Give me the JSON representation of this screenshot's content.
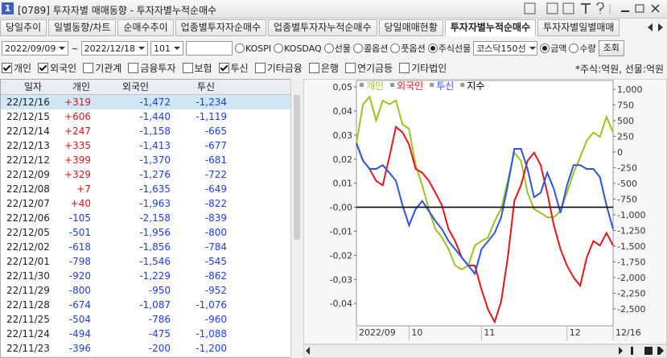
{
  "window": {
    "badge": "1",
    "title": "[0789] 투자자별 매매동향 - 투자자별누적순매수"
  },
  "tabs": [
    {
      "label": "당일추이",
      "active": false
    },
    {
      "label": "일별동향/차트",
      "active": false
    },
    {
      "label": "순매수추이",
      "active": false
    },
    {
      "label": "업종별투자자순매수",
      "active": false
    },
    {
      "label": "업종별투자자누적순매수",
      "active": false
    },
    {
      "label": "당일매매현황",
      "active": false
    },
    {
      "label": "투자자별누적순매수",
      "active": true
    },
    {
      "label": "투자자별일별매매",
      "active": false
    }
  ],
  "controls": {
    "start_date": "2022/09/09",
    "separator": "~",
    "end_date": "2022/12/18",
    "code": "101",
    "markets": [
      {
        "label": "KOSPI",
        "checked": false
      },
      {
        "label": "KOSDAQ",
        "checked": false
      },
      {
        "label": "선물",
        "checked": false
      },
      {
        "label": "콜옵션",
        "checked": false
      },
      {
        "label": "풋옵션",
        "checked": false
      },
      {
        "label": "주식선물",
        "checked": true
      }
    ],
    "product": "코스닥150선",
    "units": [
      {
        "label": "금액",
        "checked": true
      },
      {
        "label": "수량",
        "checked": false
      }
    ],
    "search": "조회"
  },
  "filters": {
    "checkboxes": [
      {
        "label": "개인",
        "checked": true
      },
      {
        "label": "외국인",
        "checked": true
      },
      {
        "label": "기관계",
        "checked": false
      },
      {
        "label": "금융투자",
        "checked": false
      },
      {
        "label": "보험",
        "checked": false
      },
      {
        "label": "투신",
        "checked": true
      },
      {
        "label": "기타금융",
        "checked": false
      },
      {
        "label": "은행",
        "checked": false
      },
      {
        "label": "연기금등",
        "checked": false
      },
      {
        "label": "기타법인",
        "checked": false
      }
    ],
    "unit_note": "*주식:억원, 선물:억원"
  },
  "table": {
    "columns": [
      "일자",
      "개인",
      "외국인",
      "투신"
    ],
    "rows": [
      [
        "22/12/16",
        "+319",
        "-1,472",
        "-1,234"
      ],
      [
        "22/12/15",
        "+606",
        "-1,440",
        "-1,119"
      ],
      [
        "22/12/14",
        "+247",
        "-1,158",
        "-665"
      ],
      [
        "22/12/13",
        "+335",
        "-1,413",
        "-677"
      ],
      [
        "22/12/12",
        "+399",
        "-1,370",
        "-681"
      ],
      [
        "22/12/09",
        "+329",
        "-1,276",
        "-722"
      ],
      [
        "22/12/08",
        "+7",
        "-1,635",
        "-649"
      ],
      [
        "22/12/07",
        "+40",
        "-1,963",
        "-822"
      ],
      [
        "22/12/06",
        "-105",
        "-2,158",
        "-839"
      ],
      [
        "22/12/05",
        "-501",
        "-1,956",
        "-800"
      ],
      [
        "22/12/02",
        "-618",
        "-1,856",
        "-784"
      ],
      [
        "22/12/01",
        "-798",
        "-1,546",
        "-545"
      ],
      [
        "22/11/30",
        "-920",
        "-1,229",
        "-862"
      ],
      [
        "22/11/29",
        "-800",
        "-950",
        "-952"
      ],
      [
        "22/11/28",
        "-674",
        "-1,087",
        "-1,076"
      ],
      [
        "22/11/25",
        "-504",
        "-786",
        "-960"
      ],
      [
        "22/11/24",
        "-494",
        "-475",
        "-1,088"
      ],
      [
        "22/11/23",
        "-396",
        "-200",
        "-1,200"
      ]
    ],
    "selected_row": 0
  },
  "chart_data": {
    "type": "line",
    "categories": [
      "2022/09",
      null,
      null,
      null,
      null,
      null,
      null,
      null,
      "10",
      null,
      null,
      null,
      null,
      null,
      null,
      null,
      null,
      null,
      null,
      "11",
      null,
      null,
      null,
      null,
      null,
      null,
      null,
      null,
      null,
      null,
      null,
      null,
      "12",
      null,
      null,
      null,
      null,
      null,
      null,
      "12/16"
    ],
    "series": [
      {
        "name": "개인",
        "color": "#9bc31e",
        "axis": "y2",
        "values": [
          140,
          760,
          880,
          500,
          820,
          760,
          820,
          440,
          370,
          -210,
          -530,
          -910,
          -1230,
          -1360,
          -1550,
          -1810,
          -1870,
          -1810,
          -1490,
          -1420,
          -1360,
          -1100,
          -910,
          -460,
          -10,
          -140,
          -650,
          -910,
          -970,
          -1040,
          -1040,
          -940,
          -650,
          -330,
          -80,
          180,
          310,
          240,
          560,
          310
        ]
      },
      {
        "name": "외국인",
        "color": "#e8141c",
        "axis": "y2",
        "values": [
          140,
          -140,
          -270,
          -460,
          -530,
          -80,
          400,
          310,
          120,
          -270,
          -330,
          -460,
          -650,
          -850,
          -1230,
          -1420,
          -1680,
          -1810,
          -1810,
          -2190,
          -2510,
          -2710,
          -2380,
          -1680,
          -780,
          -530,
          -140,
          -10,
          -210,
          -650,
          -1170,
          -1550,
          -1810,
          -2000,
          -2130,
          -1680,
          -1420,
          -1490,
          -1290,
          -1490
        ]
      },
      {
        "name": "투신",
        "color": "#2b55e0",
        "axis": "y2",
        "values": [
          140,
          -140,
          -270,
          -270,
          -210,
          -330,
          -460,
          -850,
          -1170,
          -910,
          -780,
          -940,
          -1100,
          -1230,
          -1420,
          -1550,
          -1680,
          -1810,
          -1940,
          -1550,
          -1420,
          -1290,
          -1040,
          -530,
          50,
          50,
          -270,
          -720,
          -650,
          -330,
          -590,
          -970,
          -530,
          -210,
          -210,
          -270,
          -270,
          -400,
          -850,
          -1230
        ]
      },
      {
        "name": "지수",
        "color": "#000000",
        "values": [
          0,
          0,
          0,
          0,
          0,
          0,
          0,
          0,
          0,
          0,
          0,
          0,
          0,
          0,
          0,
          0,
          0,
          0,
          0,
          0,
          0,
          0,
          0,
          0,
          0,
          0,
          0,
          0,
          0,
          0,
          0,
          0,
          0,
          0,
          0,
          0,
          0,
          0,
          0,
          0
        ]
      }
    ],
    "ylim": [
      -0.0493,
      0.0527
    ],
    "yticks": [
      {
        "value": 0.05,
        "label": "0,05"
      },
      {
        "value": 0.04,
        "label": "0,04"
      },
      {
        "value": 0.03,
        "label": "0,03"
      },
      {
        "value": 0.02,
        "label": "0,02"
      },
      {
        "value": 0.01,
        "label": "0,01"
      },
      {
        "value": 0,
        "label": "-0,00"
      },
      {
        "value": -0.01,
        "label": "-0,01"
      },
      {
        "value": -0.02,
        "label": "-0,02"
      },
      {
        "value": -0.03,
        "label": "-0,03"
      },
      {
        "value": -0.04,
        "label": "-0,04"
      }
    ],
    "y2lim": [
      -2770,
      1140
    ],
    "y2ticks": [
      {
        "value": 1000,
        "label": "1,000"
      },
      750,
      500,
      250,
      0,
      -250,
      -500,
      -750,
      {
        "value": -1000,
        "label": "-1,000"
      },
      {
        "value": -1250,
        "label": "-1,250"
      },
      {
        "value": -1500,
        "label": "-1,500"
      },
      {
        "value": -1750,
        "label": "-1,750"
      },
      {
        "value": -2000,
        "label": "-2,000"
      },
      {
        "value": -2250,
        "label": "-2,250"
      },
      {
        "value": -2500,
        "label": "-2,500"
      }
    ]
  }
}
